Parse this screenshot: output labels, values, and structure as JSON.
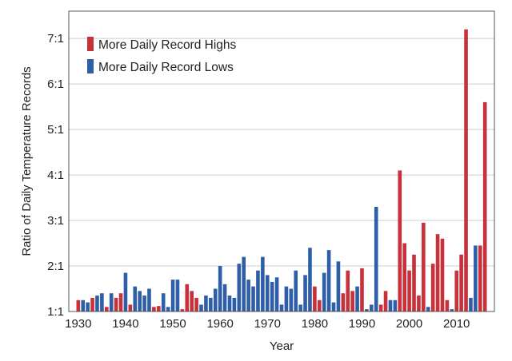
{
  "colors": {
    "highs": "#c8303a",
    "lows": "#2f5ea8",
    "grid": "#cccccc",
    "frame": "#555555"
  },
  "chart_data": {
    "type": "bar",
    "title": "",
    "xlabel": "Year",
    "ylabel": "Ratio of Daily Temperature Records",
    "ylim": [
      1,
      7.6
    ],
    "xlim": [
      1928,
      2018
    ],
    "grid": true,
    "legend_position": "top-left",
    "y_ticks": [
      {
        "value": 1,
        "label": "1:1"
      },
      {
        "value": 2,
        "label": "2:1"
      },
      {
        "value": 3,
        "label": "3:1"
      },
      {
        "value": 4,
        "label": "4:1"
      },
      {
        "value": 5,
        "label": "5:1"
      },
      {
        "value": 6,
        "label": "6:1"
      },
      {
        "value": 7,
        "label": "7:1"
      }
    ],
    "x_ticks": [
      {
        "value": 1930,
        "label": "1930"
      },
      {
        "value": 1940,
        "label": "1940"
      },
      {
        "value": 1950,
        "label": "1950"
      },
      {
        "value": 1960,
        "label": "1960"
      },
      {
        "value": 1970,
        "label": "1970"
      },
      {
        "value": 1980,
        "label": "1980"
      },
      {
        "value": 1990,
        "label": "1990"
      },
      {
        "value": 2000,
        "label": "2000"
      },
      {
        "value": 2010,
        "label": "2010"
      }
    ],
    "legend": [
      {
        "key": "highs",
        "label": "More Daily Record Highs"
      },
      {
        "key": "lows",
        "label": "More Daily Record Lows"
      }
    ],
    "bars": [
      {
        "year": 1930,
        "value": 1.25,
        "type": "highs"
      },
      {
        "year": 1931,
        "value": 1.25,
        "type": "lows"
      },
      {
        "year": 1932,
        "value": 1.2,
        "type": "lows"
      },
      {
        "year": 1933,
        "value": 1.3,
        "type": "highs"
      },
      {
        "year": 1934,
        "value": 1.35,
        "type": "lows"
      },
      {
        "year": 1935,
        "value": 1.4,
        "type": "lows"
      },
      {
        "year": 1936,
        "value": 1.1,
        "type": "highs"
      },
      {
        "year": 1937,
        "value": 1.4,
        "type": "lows"
      },
      {
        "year": 1938,
        "value": 1.3,
        "type": "highs"
      },
      {
        "year": 1939,
        "value": 1.4,
        "type": "highs"
      },
      {
        "year": 1940,
        "value": 1.85,
        "type": "lows"
      },
      {
        "year": 1941,
        "value": 1.15,
        "type": "highs"
      },
      {
        "year": 1942,
        "value": 1.55,
        "type": "lows"
      },
      {
        "year": 1943,
        "value": 1.45,
        "type": "lows"
      },
      {
        "year": 1944,
        "value": 1.35,
        "type": "lows"
      },
      {
        "year": 1945,
        "value": 1.5,
        "type": "lows"
      },
      {
        "year": 1946,
        "value": 1.1,
        "type": "highs"
      },
      {
        "year": 1947,
        "value": 1.12,
        "type": "highs"
      },
      {
        "year": 1948,
        "value": 1.4,
        "type": "lows"
      },
      {
        "year": 1949,
        "value": 1.1,
        "type": "lows"
      },
      {
        "year": 1950,
        "value": 1.7,
        "type": "lows"
      },
      {
        "year": 1951,
        "value": 1.7,
        "type": "lows"
      },
      {
        "year": 1952,
        "value": 1.05,
        "type": "highs"
      },
      {
        "year": 1953,
        "value": 1.6,
        "type": "highs"
      },
      {
        "year": 1954,
        "value": 1.45,
        "type": "highs"
      },
      {
        "year": 1955,
        "value": 1.3,
        "type": "highs"
      },
      {
        "year": 1956,
        "value": 1.15,
        "type": "lows"
      },
      {
        "year": 1957,
        "value": 1.35,
        "type": "lows"
      },
      {
        "year": 1958,
        "value": 1.3,
        "type": "lows"
      },
      {
        "year": 1959,
        "value": 1.5,
        "type": "lows"
      },
      {
        "year": 1960,
        "value": 2.0,
        "type": "lows"
      },
      {
        "year": 1961,
        "value": 1.6,
        "type": "lows"
      },
      {
        "year": 1962,
        "value": 1.35,
        "type": "lows"
      },
      {
        "year": 1963,
        "value": 1.3,
        "type": "lows"
      },
      {
        "year": 1964,
        "value": 2.05,
        "type": "lows"
      },
      {
        "year": 1965,
        "value": 2.2,
        "type": "lows"
      },
      {
        "year": 1966,
        "value": 1.7,
        "type": "lows"
      },
      {
        "year": 1967,
        "value": 1.55,
        "type": "lows"
      },
      {
        "year": 1968,
        "value": 1.9,
        "type": "lows"
      },
      {
        "year": 1969,
        "value": 2.2,
        "type": "lows"
      },
      {
        "year": 1970,
        "value": 1.8,
        "type": "lows"
      },
      {
        "year": 1971,
        "value": 1.65,
        "type": "lows"
      },
      {
        "year": 1972,
        "value": 1.75,
        "type": "lows"
      },
      {
        "year": 1973,
        "value": 1.15,
        "type": "lows"
      },
      {
        "year": 1974,
        "value": 1.55,
        "type": "lows"
      },
      {
        "year": 1975,
        "value": 1.5,
        "type": "lows"
      },
      {
        "year": 1976,
        "value": 1.9,
        "type": "lows"
      },
      {
        "year": 1977,
        "value": 1.15,
        "type": "lows"
      },
      {
        "year": 1978,
        "value": 1.8,
        "type": "lows"
      },
      {
        "year": 1979,
        "value": 2.4,
        "type": "lows"
      },
      {
        "year": 1980,
        "value": 1.55,
        "type": "highs"
      },
      {
        "year": 1981,
        "value": 1.25,
        "type": "highs"
      },
      {
        "year": 1982,
        "value": 1.85,
        "type": "lows"
      },
      {
        "year": 1983,
        "value": 2.35,
        "type": "lows"
      },
      {
        "year": 1984,
        "value": 1.2,
        "type": "lows"
      },
      {
        "year": 1985,
        "value": 2.1,
        "type": "lows"
      },
      {
        "year": 1986,
        "value": 1.4,
        "type": "highs"
      },
      {
        "year": 1987,
        "value": 1.9,
        "type": "highs"
      },
      {
        "year": 1988,
        "value": 1.45,
        "type": "highs"
      },
      {
        "year": 1989,
        "value": 1.55,
        "type": "lows"
      },
      {
        "year": 1990,
        "value": 1.95,
        "type": "highs"
      },
      {
        "year": 1991,
        "value": 1.05,
        "type": "lows"
      },
      {
        "year": 1992,
        "value": 1.15,
        "type": "lows"
      },
      {
        "year": 1993,
        "value": 3.3,
        "type": "lows"
      },
      {
        "year": 1994,
        "value": 1.15,
        "type": "highs"
      },
      {
        "year": 1995,
        "value": 1.45,
        "type": "highs"
      },
      {
        "year": 1996,
        "value": 1.25,
        "type": "lows"
      },
      {
        "year": 1997,
        "value": 1.25,
        "type": "lows"
      },
      {
        "year": 1998,
        "value": 4.1,
        "type": "highs"
      },
      {
        "year": 1999,
        "value": 2.5,
        "type": "highs"
      },
      {
        "year": 2000,
        "value": 1.9,
        "type": "highs"
      },
      {
        "year": 2001,
        "value": 2.25,
        "type": "highs"
      },
      {
        "year": 2002,
        "value": 1.35,
        "type": "highs"
      },
      {
        "year": 2003,
        "value": 2.95,
        "type": "highs"
      },
      {
        "year": 2004,
        "value": 1.1,
        "type": "lows"
      },
      {
        "year": 2005,
        "value": 2.05,
        "type": "highs"
      },
      {
        "year": 2006,
        "value": 2.7,
        "type": "highs"
      },
      {
        "year": 2007,
        "value": 2.6,
        "type": "highs"
      },
      {
        "year": 2008,
        "value": 1.25,
        "type": "highs"
      },
      {
        "year": 2009,
        "value": 1.05,
        "type": "lows"
      },
      {
        "year": 2010,
        "value": 1.9,
        "type": "highs"
      },
      {
        "year": 2011,
        "value": 2.25,
        "type": "highs"
      },
      {
        "year": 2012,
        "value": 7.2,
        "type": "highs"
      },
      {
        "year": 2013,
        "value": 1.3,
        "type": "lows"
      },
      {
        "year": 2014,
        "value": 2.45,
        "type": "lows"
      },
      {
        "year": 2015,
        "value": 2.45,
        "type": "highs"
      },
      {
        "year": 2016,
        "value": 5.6,
        "type": "highs"
      }
    ]
  }
}
